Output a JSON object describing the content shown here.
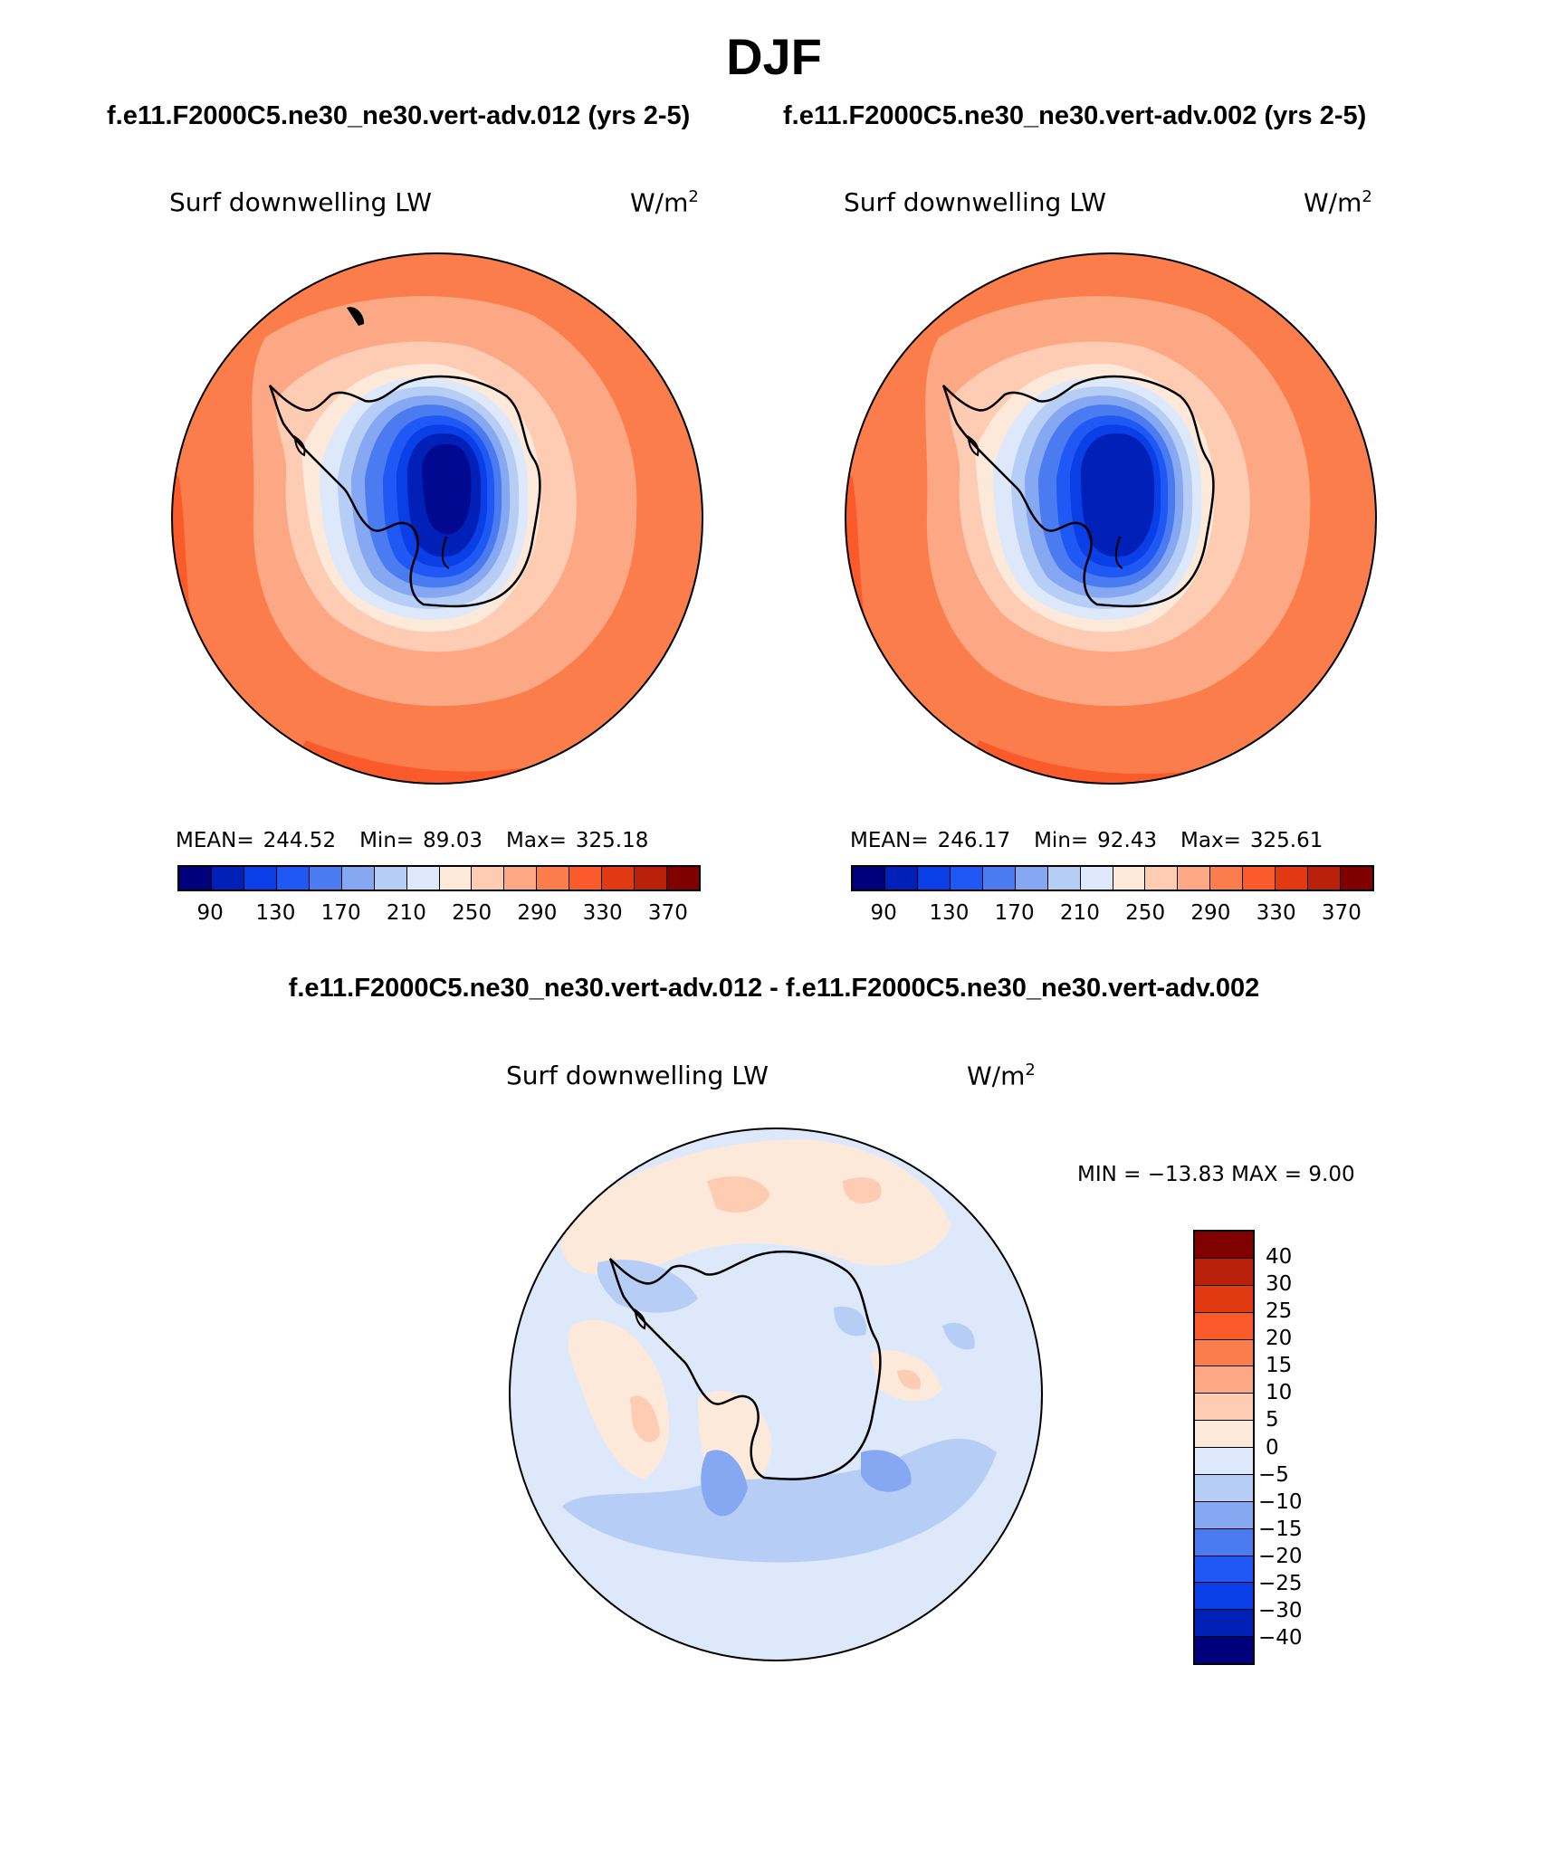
{
  "title": "DJF",
  "case_titles": {
    "left": "f.e11.F2000C5.ne30_ne30.vert-adv.012 (yrs 2-5)",
    "right": "f.e11.F2000C5.ne30_ne30.vert-adv.002 (yrs 2-5)"
  },
  "diff_title": "f.e11.F2000C5.ne30_ne30.vert-adv.012 - f.e11.F2000C5.ne30_ne30.vert-adv.002",
  "panels": [
    {
      "variable": "Surf downwelling LW",
      "units_base": "W/m",
      "units_exp": "2",
      "stats": {
        "mean_label": "MEAN=",
        "mean": "244.52",
        "min_label": "Min=",
        "min": "89.03",
        "max_label": "Max=",
        "max": "325.18"
      }
    },
    {
      "variable": "Surf downwelling LW",
      "units_base": "W/m",
      "units_exp": "2",
      "stats": {
        "mean_label": "MEAN=",
        "mean": "246.17",
        "min_label": "Min=",
        "min": "92.43",
        "max_label": "Max=",
        "max": "325.61"
      }
    }
  ],
  "diff_panel": {
    "variable": "Surf downwelling LW",
    "units_base": "W/m",
    "units_exp": "2",
    "minmax": "MIN = −13.83 MAX =    9.00"
  },
  "colorbar_main": {
    "colors": [
      "#00007d",
      "#0020b8",
      "#0a3ee6",
      "#2058f5",
      "#4a7bf0",
      "#86a8f2",
      "#b6cdf6",
      "#dde9fb",
      "#fde9da",
      "#fdccb2",
      "#fca885",
      "#fb7d4b",
      "#fb5a2a",
      "#e13a12",
      "#b9200a",
      "#800000"
    ],
    "tick_labels": [
      "90",
      "130",
      "170",
      "210",
      "250",
      "290",
      "330",
      "370"
    ]
  },
  "colorbar_diff": {
    "colors": [
      "#800000",
      "#b9200a",
      "#e13a12",
      "#fb5a2a",
      "#fb7d4b",
      "#fca885",
      "#fdccb2",
      "#fde9da",
      "#dde9fb",
      "#b6cdf6",
      "#86a8f2",
      "#4a7bf0",
      "#2058f5",
      "#0a3ee6",
      "#0020b8",
      "#00007d"
    ],
    "labels": [
      "40",
      "30",
      "25",
      "20",
      "15",
      "10",
      "5",
      "0",
      "−5",
      "−10",
      "−15",
      "−20",
      "−25",
      "−30",
      "−40"
    ]
  }
}
